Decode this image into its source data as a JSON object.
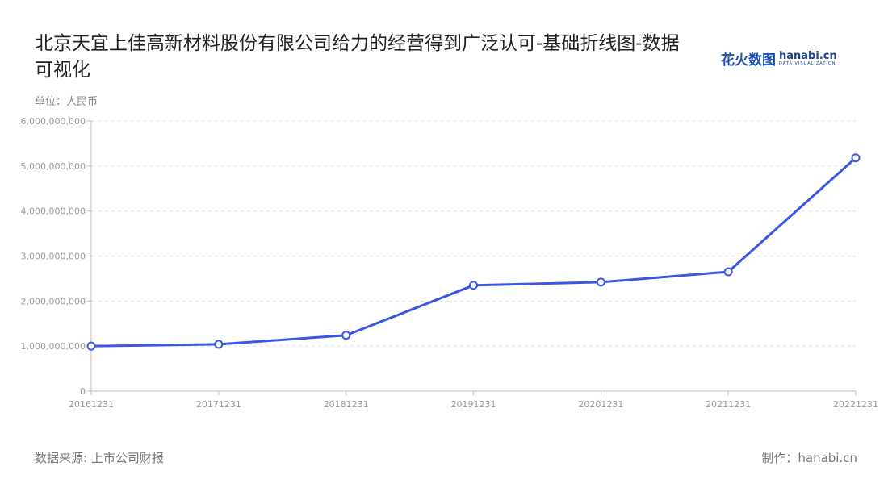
{
  "title": "北京天宜上佳高新材料股份有限公司给力的经营得到广泛认可-基础折线图-数据可视化",
  "logo": {
    "cn": "花火数图",
    "en": "hanabi.cn",
    "sub": "DATA VISUALIZATION"
  },
  "footer": {
    "source": "数据来源: 上市公司财报",
    "maker": "制作：hanabi.cn"
  },
  "chart_data": {
    "type": "line",
    "ylabel": "单位：人民币",
    "categories": [
      "20161231",
      "20171231",
      "20181231",
      "20191231",
      "20201231",
      "20211231",
      "20221231"
    ],
    "values": [
      1000000000,
      1040000000,
      1240000000,
      2350000000,
      2420000000,
      2650000000,
      5180000000
    ],
    "ylim": [
      0,
      6000000000
    ],
    "yticks": [
      "0",
      "1,000,000,000",
      "2,000,000,000",
      "3,000,000,000",
      "4,000,000,000",
      "5,000,000,000",
      "6,000,000,000"
    ],
    "grid": true,
    "color": "#3a56e4"
  }
}
